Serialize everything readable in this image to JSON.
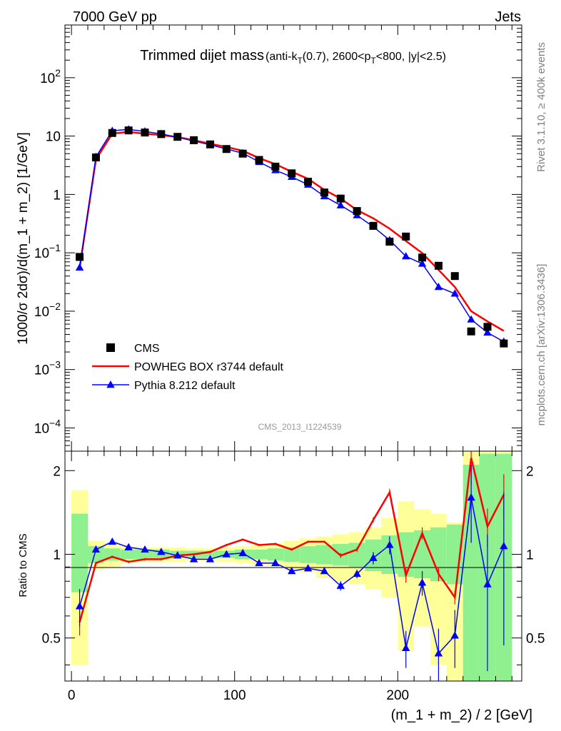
{
  "header": {
    "energy_label": "7000 GeV pp",
    "category_label": "Jets"
  },
  "side_text": {
    "rivet": "Rivet 3.1.10, ≥ 400k events",
    "mcplots": "mcplots.cern.ch [arXiv:1306.3436]"
  },
  "chart_data": [
    {
      "type": "line",
      "panel": "main",
      "title": "Trimmed dijet mass",
      "title_detail": "(anti-k_T(0.7), 2600<p_T<800, |y|<2.5)",
      "ylabel": "1000/σ 2dσ)/d(m_1 + m_2) [1/GeV]",
      "xlabel": "(m_1 + m_2) / 2 [GeV]",
      "analysis_label": "CMS_2013_I1224539",
      "xlim": [
        -4,
        276
      ],
      "ylim": [
        4e-05,
        800
      ],
      "log_y": true,
      "legend_position": "bottom-left",
      "x_ticks": [
        0,
        100,
        200
      ],
      "x": [
        5,
        15,
        25,
        35,
        45,
        55,
        65,
        75,
        85,
        95,
        105,
        115,
        125,
        135,
        145,
        155,
        165,
        175,
        185,
        195,
        205,
        215,
        225,
        235,
        245,
        255,
        265
      ],
      "series": [
        {
          "name": "CMS",
          "style": "markers",
          "marker": "square",
          "color": "#000000",
          "values": [
            0.085,
            4.3,
            11.3,
            12.5,
            11.5,
            10.8,
            9.7,
            8.5,
            7.2,
            6.0,
            5.0,
            3.9,
            3.0,
            2.3,
            1.65,
            1.08,
            0.85,
            0.52,
            0.29,
            0.155,
            0.19,
            0.083,
            0.06,
            0.04,
            0.0045,
            0.0054,
            0.0028
          ]
        },
        {
          "name": "POWHEG BOX r3744 default",
          "style": "line",
          "color": "#ff0000",
          "values": [
            0.055,
            4.0,
            11.0,
            11.8,
            11.0,
            10.4,
            9.6,
            8.5,
            7.4,
            6.5,
            5.6,
            4.2,
            3.3,
            2.45,
            1.85,
            1.2,
            0.85,
            0.54,
            0.39,
            0.26,
            0.16,
            0.099,
            0.051,
            0.026,
            0.01,
            0.0067,
            0.0046
          ]
        },
        {
          "name": "Pythia 8.212 default",
          "style": "line-markers",
          "marker": "triangle",
          "color": "#0000ff",
          "values": [
            0.056,
            4.4,
            12.3,
            13.0,
            12.0,
            10.9,
            9.6,
            8.2,
            7.1,
            6.0,
            5.1,
            3.6,
            2.6,
            2.0,
            1.47,
            0.93,
            0.65,
            0.44,
            0.28,
            0.165,
            0.087,
            0.065,
            0.026,
            0.02,
            0.0072,
            0.0043,
            0.003
          ]
        }
      ]
    },
    {
      "type": "line",
      "panel": "ratio",
      "ylabel": "Ratio to CMS",
      "xlabel": "(m_1 + m_2) / 2 [GeV]",
      "xlim": [
        -4,
        276
      ],
      "ylim": [
        0.35,
        2.35
      ],
      "log_y": true,
      "y_ticks": [
        0.5,
        1,
        2
      ],
      "reference_line": 1,
      "x": [
        5,
        15,
        25,
        35,
        45,
        55,
        65,
        75,
        85,
        95,
        105,
        115,
        125,
        135,
        145,
        155,
        165,
        175,
        185,
        195,
        205,
        215,
        225,
        235,
        245,
        255,
        265
      ],
      "bands": {
        "inner_color": "#8ef08e",
        "outer_color": "#ffff99",
        "bins": [
          {
            "x0": 0,
            "x1": 10,
            "in": [
              0.73,
              1.4
            ],
            "out": [
              0.4,
              1.7
            ]
          },
          {
            "x0": 10,
            "x1": 20,
            "in": [
              0.93,
              1.07
            ],
            "out": [
              0.88,
              1.12
            ]
          },
          {
            "x0": 20,
            "x1": 30,
            "in": [
              0.95,
              1.05
            ],
            "out": [
              0.9,
              1.1
            ]
          },
          {
            "x0": 30,
            "x1": 40,
            "in": [
              0.96,
              1.04
            ],
            "out": [
              0.93,
              1.07
            ]
          },
          {
            "x0": 40,
            "x1": 50,
            "in": [
              0.96,
              1.04
            ],
            "out": [
              0.94,
              1.06
            ]
          },
          {
            "x0": 50,
            "x1": 60,
            "in": [
              0.96,
              1.04
            ],
            "out": [
              0.94,
              1.06
            ]
          },
          {
            "x0": 60,
            "x1": 70,
            "in": [
              0.97,
              1.03
            ],
            "out": [
              0.94,
              1.06
            ]
          },
          {
            "x0": 70,
            "x1": 80,
            "in": [
              0.97,
              1.03
            ],
            "out": [
              0.95,
              1.05
            ]
          },
          {
            "x0": 80,
            "x1": 90,
            "in": [
              0.97,
              1.03
            ],
            "out": [
              0.95,
              1.05
            ]
          },
          {
            "x0": 90,
            "x1": 100,
            "in": [
              0.97,
              1.03
            ],
            "out": [
              0.94,
              1.06
            ]
          },
          {
            "x0": 100,
            "x1": 110,
            "in": [
              0.96,
              1.04
            ],
            "out": [
              0.93,
              1.07
            ]
          },
          {
            "x0": 110,
            "x1": 120,
            "in": [
              0.96,
              1.04
            ],
            "out": [
              0.92,
              1.08
            ]
          },
          {
            "x0": 120,
            "x1": 130,
            "in": [
              0.95,
              1.05
            ],
            "out": [
              0.91,
              1.09
            ]
          },
          {
            "x0": 130,
            "x1": 140,
            "in": [
              0.94,
              1.06
            ],
            "out": [
              0.88,
              1.12
            ]
          },
          {
            "x0": 140,
            "x1": 150,
            "in": [
              0.93,
              1.07
            ],
            "out": [
              0.86,
              1.14
            ]
          },
          {
            "x0": 150,
            "x1": 160,
            "in": [
              0.92,
              1.08
            ],
            "out": [
              0.82,
              1.16
            ]
          },
          {
            "x0": 160,
            "x1": 170,
            "in": [
              0.91,
              1.09
            ],
            "out": [
              0.8,
              1.18
            ]
          },
          {
            "x0": 170,
            "x1": 180,
            "in": [
              0.9,
              1.1
            ],
            "out": [
              0.78,
              1.2
            ]
          },
          {
            "x0": 180,
            "x1": 190,
            "in": [
              0.87,
              1.13
            ],
            "out": [
              0.75,
              1.25
            ]
          },
          {
            "x0": 190,
            "x1": 200,
            "in": [
              0.85,
              1.17
            ],
            "out": [
              0.7,
              1.35
            ]
          },
          {
            "x0": 200,
            "x1": 210,
            "in": [
              0.83,
              1.2
            ],
            "out": [
              0.45,
              1.55
            ]
          },
          {
            "x0": 210,
            "x1": 220,
            "in": [
              0.82,
              1.22
            ],
            "out": [
              0.55,
              1.45
            ]
          },
          {
            "x0": 220,
            "x1": 230,
            "in": [
              0.8,
              1.25
            ],
            "out": [
              0.4,
              1.4
            ]
          },
          {
            "x0": 230,
            "x1": 240,
            "in": [
              0.78,
              1.28
            ],
            "out": [
              0.35,
              1.3
            ]
          },
          {
            "x0": 240,
            "x1": 250,
            "in": [
              0.35,
              2.1
            ],
            "out": [
              0.35,
              2.35
            ]
          },
          {
            "x0": 250,
            "x1": 260,
            "in": [
              0.35,
              2.3
            ],
            "out": [
              0.35,
              2.35
            ]
          },
          {
            "x0": 260,
            "x1": 270,
            "in": [
              0.35,
              2.3
            ],
            "out": [
              0.35,
              2.35
            ]
          }
        ]
      },
      "series": [
        {
          "name": "POWHEG BOX r3744 default",
          "color": "#ff0000",
          "values": [
            0.57,
            0.93,
            0.98,
            0.94,
            0.96,
            0.96,
            0.99,
            1.0,
            1.02,
            1.08,
            1.13,
            1.08,
            1.09,
            1.04,
            1.11,
            1.11,
            0.99,
            1.04,
            1.33,
            1.67,
            0.84,
            1.19,
            0.85,
            0.7,
            2.22,
            1.26,
            1.64
          ],
          "errors": [
            0.06,
            0.01,
            0.01,
            0.01,
            0.01,
            0.01,
            0.01,
            0.01,
            0.01,
            0.01,
            0.01,
            0.01,
            0.01,
            0.01,
            0.01,
            0.01,
            0.02,
            0.02,
            0.03,
            0.05,
            0.05,
            0.06,
            0.05,
            0.04,
            0.45,
            0.2,
            0.3
          ]
        },
        {
          "name": "Pythia 8.212 default",
          "color": "#0000ff",
          "values": [
            0.65,
            1.04,
            1.11,
            1.06,
            1.04,
            1.02,
            0.99,
            0.96,
            0.96,
            1.0,
            1.01,
            0.93,
            0.93,
            0.87,
            0.89,
            0.87,
            0.77,
            0.85,
            0.97,
            1.08,
            0.46,
            0.79,
            0.44,
            0.51,
            1.6,
            0.78,
            1.07
          ],
          "errors": [
            0.1,
            0.02,
            0.01,
            0.01,
            0.01,
            0.01,
            0.01,
            0.01,
            0.01,
            0.01,
            0.01,
            0.01,
            0.01,
            0.01,
            0.02,
            0.02,
            0.03,
            0.03,
            0.05,
            0.08,
            0.07,
            0.08,
            0.1,
            0.12,
            0.5,
            0.4,
            0.6
          ]
        }
      ]
    }
  ]
}
